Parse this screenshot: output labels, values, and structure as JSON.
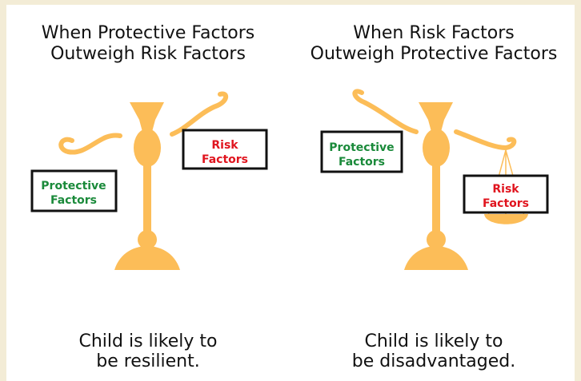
{
  "panels": [
    {
      "title": [
        "When Protective Factors",
        "Outweigh Risk Factors"
      ],
      "protective_box": [
        "Protective",
        "Factors"
      ],
      "risk_box": [
        "Risk",
        "Factors"
      ],
      "caption": [
        "Child is likely to",
        "be resilient."
      ]
    },
    {
      "title": [
        "When Risk Factors",
        "Outweigh Protective Factors"
      ],
      "protective_box": [
        "Protective",
        "Factors"
      ],
      "risk_box": [
        "Risk",
        "Factors"
      ],
      "caption": [
        "Child is likely to",
        "be disadvantaged."
      ]
    }
  ]
}
